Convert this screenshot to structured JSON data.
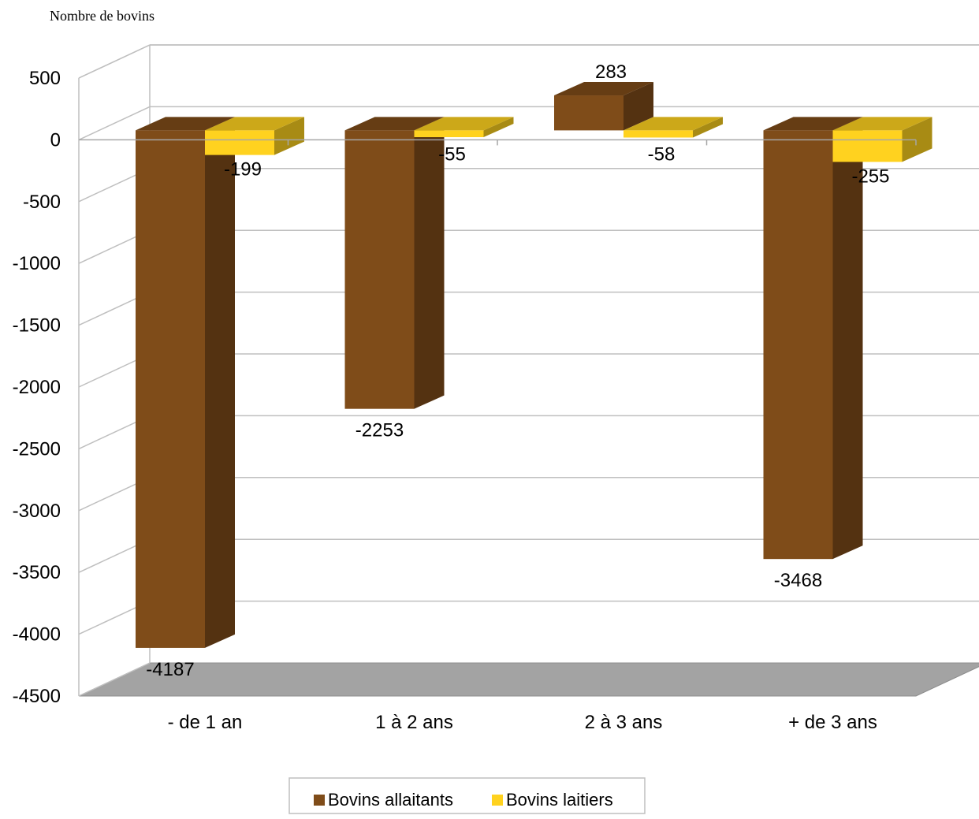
{
  "chart_data": {
    "type": "bar",
    "ylabel": "Nombre de bovins",
    "xlabel": "",
    "title": "",
    "categories": [
      "- de 1 an",
      "1 à 2 ans",
      "2 à 3 ans",
      "+ de 3 ans"
    ],
    "series": [
      {
        "name": "Bovins allaitants",
        "values": [
          -4187,
          -2253,
          283,
          -3468
        ],
        "color": "#7f4c19"
      },
      {
        "name": "Bovins laitiers",
        "values": [
          -199,
          -55,
          -58,
          -255
        ],
        "color": "#ffd21f"
      }
    ],
    "ylim": [
      -4500,
      500
    ],
    "yticks": [
      "500",
      "0",
      "-500",
      "-1000",
      "-1500",
      "-2000",
      "-2500",
      "-3000",
      "-3500",
      "-4000",
      "-4500"
    ],
    "data_labels": [
      [
        "-4187",
        "-2253",
        "283",
        "-3468"
      ],
      [
        "-199",
        "-55",
        "-58",
        "-255"
      ]
    ],
    "grid": true,
    "legend_position": "bottom",
    "style": "3d-clustered-column"
  }
}
